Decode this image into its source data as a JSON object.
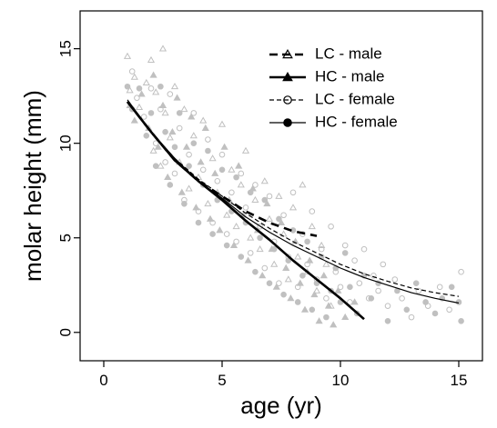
{
  "chart_data": {
    "type": "scatter",
    "xlabel": "age (yr)",
    "ylabel": "molar height (mm)",
    "xlim": [
      -1.0,
      16.0
    ],
    "ylim": [
      -1.5,
      17.0
    ],
    "x_ticks": [
      0,
      5,
      10,
      15
    ],
    "y_ticks": [
      0,
      5,
      10,
      15
    ],
    "grid": false,
    "legend_position": "top-right",
    "legend": [
      {
        "label": "LC - male",
        "line": "dashed",
        "line_weight": "heavy",
        "marker": "open-triangle",
        "color": "#000000"
      },
      {
        "label": "HC - male",
        "line": "solid",
        "line_weight": "heavy",
        "marker": "filled-triangle",
        "color": "#000000"
      },
      {
        "label": "LC - female",
        "line": "dashed",
        "line_weight": "thin",
        "marker": "open-circle",
        "color": "#000000"
      },
      {
        "label": "HC - female",
        "line": "solid",
        "line_weight": "thin",
        "marker": "filled-circle",
        "color": "#000000"
      }
    ],
    "point_color": "#c0c0c0",
    "series": [
      {
        "name": "LC - male",
        "fit_curve": {
          "x": [
            1,
            2,
            3,
            4,
            5,
            6,
            7,
            8,
            9
          ],
          "y": [
            12.2,
            10.6,
            9.1,
            8.0,
            7.2,
            6.4,
            5.8,
            5.35,
            5.1
          ]
        },
        "points": [
          [
            1.0,
            14.6
          ],
          [
            1.1,
            12.8
          ],
          [
            1.3,
            13.5
          ],
          [
            1.5,
            11.9
          ],
          [
            1.8,
            13.2
          ],
          [
            2.0,
            14.4
          ],
          [
            2.1,
            9.6
          ],
          [
            2.2,
            12.7
          ],
          [
            2.4,
            8.8
          ],
          [
            2.5,
            15.0
          ],
          [
            2.6,
            11.6
          ],
          [
            2.8,
            10.3
          ],
          [
            3.0,
            13.0
          ],
          [
            3.2,
            9.0
          ],
          [
            3.4,
            11.8
          ],
          [
            3.6,
            7.6
          ],
          [
            3.8,
            10.4
          ],
          [
            4.0,
            8.2
          ],
          [
            4.2,
            11.2
          ],
          [
            4.4,
            6.8
          ],
          [
            4.6,
            9.2
          ],
          [
            4.8,
            7.4
          ],
          [
            5.0,
            11.0
          ],
          [
            5.2,
            6.2
          ],
          [
            5.4,
            8.6
          ],
          [
            5.6,
            5.6
          ],
          [
            5.8,
            7.8
          ],
          [
            6.0,
            9.6
          ],
          [
            6.2,
            5.0
          ],
          [
            6.4,
            7.0
          ],
          [
            6.6,
            4.4
          ],
          [
            6.8,
            8.0
          ],
          [
            7.0,
            6.0
          ],
          [
            7.2,
            3.6
          ],
          [
            7.4,
            7.2
          ],
          [
            7.6,
            5.2
          ],
          [
            7.8,
            2.8
          ],
          [
            8.0,
            6.6
          ],
          [
            8.2,
            4.0
          ],
          [
            8.4,
            7.8
          ],
          [
            8.6,
            3.2
          ],
          [
            8.8,
            5.6
          ],
          [
            9.0,
            2.2
          ],
          [
            9.2,
            4.6
          ],
          [
            9.4,
            3.6
          ],
          [
            9.6,
            1.4
          ]
        ]
      },
      {
        "name": "HC - male",
        "fit_curve": {
          "x": [
            1,
            2,
            3,
            4,
            5,
            6,
            7,
            8,
            9,
            10,
            11
          ],
          "y": [
            12.2,
            10.6,
            9.1,
            8.0,
            7.0,
            5.9,
            4.9,
            3.8,
            2.8,
            1.8,
            0.7
          ]
        },
        "points": [
          [
            1.1,
            12.0
          ],
          [
            1.3,
            11.2
          ],
          [
            1.6,
            12.6
          ],
          [
            1.9,
            10.8
          ],
          [
            2.1,
            13.6
          ],
          [
            2.3,
            9.8
          ],
          [
            2.5,
            12.0
          ],
          [
            2.7,
            8.2
          ],
          [
            2.9,
            10.6
          ],
          [
            3.1,
            12.4
          ],
          [
            3.3,
            7.4
          ],
          [
            3.5,
            9.8
          ],
          [
            3.7,
            11.4
          ],
          [
            3.9,
            6.6
          ],
          [
            4.1,
            9.0
          ],
          [
            4.3,
            10.8
          ],
          [
            4.5,
            6.0
          ],
          [
            4.7,
            8.4
          ],
          [
            4.9,
            5.4
          ],
          [
            5.1,
            9.8
          ],
          [
            5.3,
            7.0
          ],
          [
            5.5,
            4.6
          ],
          [
            5.7,
            8.8
          ],
          [
            5.9,
            6.2
          ],
          [
            6.1,
            3.8
          ],
          [
            6.3,
            7.6
          ],
          [
            6.5,
            5.4
          ],
          [
            6.7,
            3.0
          ],
          [
            6.9,
            6.8
          ],
          [
            7.1,
            4.4
          ],
          [
            7.3,
            2.4
          ],
          [
            7.5,
            5.8
          ],
          [
            7.7,
            3.4
          ],
          [
            7.9,
            1.8
          ],
          [
            8.1,
            4.8
          ],
          [
            8.3,
            2.6
          ],
          [
            8.5,
            1.2
          ],
          [
            8.7,
            3.8
          ],
          [
            8.9,
            2.0
          ],
          [
            9.1,
            0.6
          ],
          [
            9.3,
            3.0
          ],
          [
            9.5,
            1.4
          ],
          [
            9.7,
            0.4
          ],
          [
            9.9,
            2.2
          ],
          [
            10.2,
            0.8
          ],
          [
            10.6,
            1.6
          ]
        ]
      },
      {
        "name": "LC - female",
        "fit_curve": {
          "x": [
            1,
            2,
            3,
            4,
            5,
            6,
            7,
            8,
            9,
            10,
            11,
            12,
            13,
            14,
            15
          ],
          "y": [
            12.2,
            10.6,
            9.2,
            8.1,
            7.2,
            6.3,
            5.5,
            4.8,
            4.2,
            3.6,
            3.1,
            2.7,
            2.35,
            2.1,
            1.9
          ]
        },
        "points": [
          [
            1.2,
            13.8
          ],
          [
            1.4,
            12.4
          ],
          [
            1.7,
            11.4
          ],
          [
            2.0,
            12.9
          ],
          [
            2.2,
            10.0
          ],
          [
            2.4,
            11.8
          ],
          [
            2.6,
            9.0
          ],
          [
            2.8,
            12.6
          ],
          [
            3.0,
            8.4
          ],
          [
            3.2,
            10.8
          ],
          [
            3.4,
            7.0
          ],
          [
            3.6,
            9.4
          ],
          [
            3.8,
            11.6
          ],
          [
            4.0,
            6.4
          ],
          [
            4.2,
            8.6
          ],
          [
            4.4,
            10.2
          ],
          [
            4.6,
            5.8
          ],
          [
            4.8,
            8.0
          ],
          [
            5.0,
            9.4
          ],
          [
            5.2,
            5.2
          ],
          [
            5.4,
            7.4
          ],
          [
            5.6,
            4.8
          ],
          [
            5.8,
            8.4
          ],
          [
            6.0,
            6.6
          ],
          [
            6.2,
            4.2
          ],
          [
            6.4,
            7.8
          ],
          [
            6.6,
            5.6
          ],
          [
            6.8,
            3.4
          ],
          [
            7.0,
            7.2
          ],
          [
            7.2,
            4.8
          ],
          [
            7.4,
            2.6
          ],
          [
            7.6,
            6.2
          ],
          [
            7.8,
            4.0
          ],
          [
            8.0,
            7.4
          ],
          [
            8.2,
            2.4
          ],
          [
            8.4,
            5.2
          ],
          [
            8.6,
            3.6
          ],
          [
            8.8,
            6.4
          ],
          [
            9.0,
            2.8
          ],
          [
            9.2,
            4.4
          ],
          [
            9.4,
            1.8
          ],
          [
            9.6,
            5.6
          ],
          [
            9.8,
            3.2
          ],
          [
            10.0,
            2.4
          ],
          [
            10.2,
            4.6
          ],
          [
            10.4,
            1.6
          ],
          [
            10.6,
            3.8
          ],
          [
            10.8,
            2.6
          ],
          [
            11.0,
            4.4
          ],
          [
            11.2,
            1.8
          ],
          [
            11.4,
            3.0
          ],
          [
            11.6,
            2.2
          ],
          [
            11.8,
            3.6
          ],
          [
            12.0,
            1.4
          ],
          [
            12.3,
            2.8
          ],
          [
            12.6,
            1.8
          ],
          [
            13.0,
            0.8
          ],
          [
            13.3,
            2.2
          ],
          [
            13.7,
            1.4
          ],
          [
            14.2,
            2.4
          ],
          [
            14.6,
            1.2
          ],
          [
            15.1,
            3.2
          ]
        ]
      },
      {
        "name": "HC - female",
        "fit_curve": {
          "x": [
            1,
            2,
            3,
            4,
            5,
            6,
            7,
            8,
            9,
            10,
            11,
            12,
            13,
            14,
            15
          ],
          "y": [
            12.3,
            10.6,
            9.2,
            8.0,
            7.1,
            6.1,
            5.3,
            4.6,
            4.0,
            3.4,
            2.9,
            2.5,
            2.1,
            1.8,
            1.55
          ]
        },
        "points": [
          [
            1.0,
            13.0
          ],
          [
            1.2,
            11.8
          ],
          [
            1.5,
            12.9
          ],
          [
            1.8,
            10.4
          ],
          [
            2.0,
            11.6
          ],
          [
            2.2,
            8.8
          ],
          [
            2.4,
            13.0
          ],
          [
            2.6,
            10.6
          ],
          [
            2.8,
            7.8
          ],
          [
            3.0,
            9.8
          ],
          [
            3.2,
            11.6
          ],
          [
            3.4,
            6.8
          ],
          [
            3.6,
            8.8
          ],
          [
            3.8,
            10.0
          ],
          [
            4.0,
            5.8
          ],
          [
            4.2,
            7.8
          ],
          [
            4.4,
            9.6
          ],
          [
            4.6,
            5.2
          ],
          [
            4.8,
            7.0
          ],
          [
            5.0,
            8.6
          ],
          [
            5.2,
            4.6
          ],
          [
            5.4,
            6.4
          ],
          [
            5.6,
            8.2
          ],
          [
            5.8,
            4.0
          ],
          [
            6.0,
            5.8
          ],
          [
            6.2,
            7.4
          ],
          [
            6.4,
            3.2
          ],
          [
            6.6,
            5.0
          ],
          [
            6.8,
            7.0
          ],
          [
            7.0,
            2.6
          ],
          [
            7.2,
            4.4
          ],
          [
            7.4,
            6.0
          ],
          [
            7.6,
            2.0
          ],
          [
            7.8,
            3.8
          ],
          [
            8.0,
            5.4
          ],
          [
            8.2,
            1.6
          ],
          [
            8.4,
            3.0
          ],
          [
            8.6,
            4.8
          ],
          [
            8.8,
            1.2
          ],
          [
            9.0,
            2.6
          ],
          [
            9.2,
            4.0
          ],
          [
            9.4,
            0.8
          ],
          [
            9.6,
            2.2
          ],
          [
            9.8,
            3.4
          ],
          [
            10.0,
            1.6
          ],
          [
            10.2,
            4.2
          ],
          [
            10.4,
            2.4
          ],
          [
            10.7,
            1.0
          ],
          [
            11.0,
            3.0
          ],
          [
            11.3,
            1.8
          ],
          [
            11.6,
            2.6
          ],
          [
            12.0,
            0.6
          ],
          [
            12.4,
            2.2
          ],
          [
            12.8,
            1.2
          ],
          [
            13.2,
            2.6
          ],
          [
            13.6,
            1.6
          ],
          [
            14.0,
            1.0
          ],
          [
            14.3,
            1.8
          ],
          [
            14.7,
            2.4
          ],
          [
            15.1,
            0.6
          ],
          [
            15.0,
            1.6
          ]
        ]
      }
    ]
  }
}
